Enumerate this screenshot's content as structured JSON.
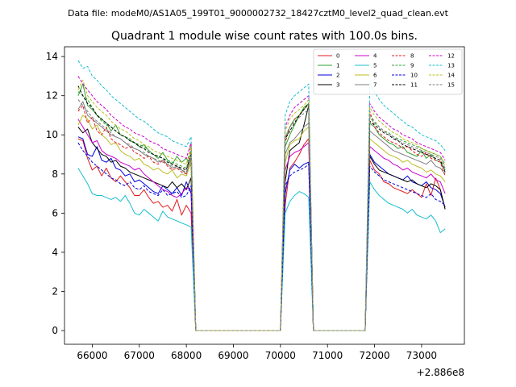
{
  "suptitle": "Data file: modeM0/AS1A05_199T01_9000002732_18427cztM0_level2_quad_clean.evt",
  "chart_data": {
    "type": "line",
    "title": "Quadrant 1 module wise count rates with 100.0s bins.",
    "xlabel": "",
    "ylabel": "",
    "x_offset_label": "+2.886e8",
    "xlim": [
      65410,
      73910
    ],
    "ylim": [
      -0.7,
      14.5
    ],
    "x_ticks": [
      66000,
      67000,
      68000,
      69000,
      70000,
      71000,
      72000,
      73000
    ],
    "x_tick_labels": [
      "66000",
      "67000",
      "68000",
      "69000",
      "70000",
      "71000",
      "72000",
      "73000"
    ],
    "y_ticks": [
      0,
      2,
      4,
      6,
      8,
      10,
      12,
      14
    ],
    "y_tick_labels": [
      "0",
      "2",
      "4",
      "6",
      "8",
      "10",
      "12",
      "14"
    ],
    "bin_size_s": 100,
    "segments": [
      {
        "start": 65700,
        "step": 100,
        "count": 25
      },
      {
        "start": 68200,
        "step": 100,
        "count": 19,
        "constant": 0
      },
      {
        "start": 70100,
        "step": 100,
        "count": 6
      },
      {
        "start": 70700,
        "step": 100,
        "count": 12,
        "constant": 0
      },
      {
        "start": 71900,
        "step": 100,
        "count": 17
      }
    ],
    "series": [
      {
        "name": "0",
        "color": "#e41a1c",
        "dash": "solid",
        "seg_a": [
          9.8,
          9.7,
          8.8,
          8.2,
          8.4,
          7.9,
          8.3,
          7.8,
          7.6,
          7.9,
          7.6,
          7.3,
          6.9,
          6.9,
          7.2,
          6.8,
          6.5,
          6.6,
          6.3,
          6.4,
          6.1,
          6.7,
          5.9,
          6.4,
          6.0
        ],
        "seg_b": [
          6.4,
          8.3,
          8.6,
          9.0,
          9.5,
          9.8
        ],
        "seg_c": [
          8.7,
          8.2,
          8.0,
          7.6,
          7.5,
          7.3,
          7.2,
          7.1,
          7.0,
          7.2,
          7.0,
          6.8,
          7.5,
          6.9,
          7.8,
          7.2,
          6.2
        ]
      },
      {
        "name": "1",
        "color": "#2ca02c",
        "dash": "solid",
        "seg_a": [
          12.0,
          12.6,
          11.5,
          11.3,
          11.0,
          10.8,
          10.6,
          10.2,
          10.5,
          10.0,
          9.9,
          9.7,
          9.6,
          9.4,
          9.5,
          9.2,
          9.0,
          8.8,
          9.1,
          8.7,
          8.5,
          8.9,
          8.6,
          8.8,
          8.4
        ],
        "seg_b": [
          9.4,
          10.0,
          10.5,
          11.0,
          11.4,
          11.6
        ],
        "seg_c": [
          10.6,
          10.4,
          10.0,
          9.8,
          9.6,
          9.5,
          9.3,
          9.4,
          9.1,
          9.0,
          8.9,
          9.2,
          8.8,
          9.0,
          8.7,
          8.6,
          8.2
        ]
      },
      {
        "name": "2",
        "color": "#0000dd",
        "dash": "solid",
        "seg_a": [
          9.9,
          9.8,
          9.0,
          8.9,
          9.4,
          8.7,
          8.6,
          8.8,
          8.3,
          8.2,
          7.9,
          8.0,
          7.6,
          7.7,
          7.5,
          7.3,
          7.1,
          7.0,
          7.4,
          7.2,
          7.0,
          7.3,
          6.9,
          7.6,
          7.0
        ],
        "seg_b": [
          7.0,
          8.2,
          8.5,
          8.3,
          8.5,
          8.6
        ],
        "seg_c": [
          9.0,
          8.6,
          8.4,
          8.2,
          8.0,
          7.9,
          7.8,
          7.7,
          7.9,
          7.6,
          7.5,
          7.4,
          7.6,
          7.3,
          7.2,
          7.0,
          6.3
        ]
      },
      {
        "name": "3",
        "color": "#000000",
        "dash": "solid",
        "seg_a": [
          10.4,
          10.1,
          10.3,
          9.6,
          9.3,
          9.0,
          8.9,
          8.6,
          8.7,
          8.4,
          8.3,
          8.1,
          8.0,
          7.9,
          7.8,
          7.7,
          7.6,
          7.5,
          7.4,
          7.3,
          7.6,
          7.3,
          7.5,
          7.2,
          7.8
        ],
        "seg_b": [
          7.6,
          9.2,
          9.4,
          9.6,
          10.5,
          11.5
        ],
        "seg_c": [
          8.9,
          8.5,
          8.2,
          8.1,
          8.0,
          7.9,
          7.8,
          7.7,
          7.6,
          7.7,
          7.5,
          7.4,
          7.3,
          7.5,
          7.4,
          7.2,
          6.2
        ]
      },
      {
        "name": "4",
        "color": "#cc00cc",
        "dash": "solid",
        "seg_a": [
          10.8,
          10.4,
          10.0,
          9.6,
          9.7,
          9.2,
          9.0,
          8.9,
          8.8,
          8.6,
          8.5,
          8.4,
          8.2,
          8.3,
          8.0,
          7.8,
          7.6,
          7.4,
          7.2,
          7.1,
          6.9,
          6.8,
          7.0,
          7.3,
          7.2
        ],
        "seg_b": [
          8.2,
          8.9,
          9.1,
          9.2,
          9.4,
          9.6
        ],
        "seg_c": [
          9.4,
          9.2,
          9.0,
          8.8,
          8.7,
          8.5,
          8.4,
          8.2,
          8.3,
          8.1,
          8.0,
          7.9,
          7.8,
          8.0,
          7.7,
          7.6,
          7.0
        ]
      },
      {
        "name": "5",
        "color": "#17becf",
        "dash": "solid",
        "seg_a": [
          8.3,
          7.9,
          7.5,
          7.0,
          6.9,
          6.9,
          6.8,
          6.7,
          6.8,
          6.6,
          6.9,
          6.5,
          6.0,
          5.9,
          6.2,
          6.0,
          5.8,
          5.6,
          6.1,
          5.8,
          5.7,
          5.6,
          5.5,
          5.4,
          5.3
        ],
        "seg_b": [
          6.0,
          6.6,
          6.9,
          7.1,
          7.0,
          6.8
        ],
        "seg_c": [
          7.6,
          7.2,
          6.9,
          6.7,
          6.5,
          6.4,
          6.3,
          6.2,
          6.0,
          6.2,
          5.9,
          5.8,
          5.7,
          5.9,
          5.6,
          5.0,
          5.2
        ]
      },
      {
        "name": "6",
        "color": "#bcbd22",
        "dash": "solid",
        "seg_a": [
          10.5,
          11.0,
          10.8,
          10.3,
          10.5,
          10.0,
          9.8,
          9.5,
          9.6,
          9.2,
          9.0,
          8.9,
          8.7,
          8.8,
          8.5,
          8.4,
          8.2,
          8.3,
          8.1,
          8.0,
          8.2,
          7.8,
          8.0,
          7.9,
          8.6
        ],
        "seg_b": [
          8.6,
          9.5,
          9.7,
          9.8,
          10.2,
          10.4
        ],
        "seg_c": [
          9.8,
          9.6,
          9.4,
          9.2,
          9.0,
          8.9,
          8.8,
          8.6,
          8.7,
          8.5,
          8.4,
          8.3,
          8.1,
          8.2,
          8.0,
          7.9,
          7.6
        ]
      },
      {
        "name": "7",
        "color": "#7f7f7f",
        "dash": "solid",
        "seg_a": [
          11.3,
          11.7,
          11.0,
          10.8,
          10.6,
          10.4,
          10.2,
          10.0,
          9.9,
          9.8,
          9.6,
          9.4,
          9.3,
          9.2,
          9.0,
          8.9,
          8.8,
          8.6,
          8.7,
          8.5,
          8.3,
          8.4,
          8.2,
          8.0,
          8.8
        ],
        "seg_b": [
          9.0,
          9.6,
          9.8,
          10.1,
          10.4,
          10.6
        ],
        "seg_c": [
          10.2,
          10.0,
          9.8,
          9.6,
          9.4,
          9.2,
          9.1,
          9.0,
          8.9,
          8.8,
          8.7,
          8.6,
          8.5,
          8.7,
          8.4,
          8.3,
          8.0
        ]
      },
      {
        "name": "8",
        "color": "#e41a1c",
        "dash": "dashed",
        "seg_a": [
          11.2,
          11.5,
          10.6,
          10.9,
          10.2,
          10.0,
          10.4,
          9.8,
          9.6,
          9.5,
          9.3,
          9.4,
          9.1,
          9.0,
          8.8,
          8.9,
          8.6,
          8.5,
          8.7,
          8.4,
          8.2,
          8.3,
          8.1,
          8.0,
          9.6
        ],
        "seg_b": [
          9.6,
          10.4,
          10.8,
          11.0,
          11.3,
          11.6
        ],
        "seg_c": [
          11.2,
          10.4,
          10.1,
          9.9,
          9.7,
          9.6,
          9.5,
          9.3,
          9.4,
          9.2,
          9.0,
          8.9,
          9.1,
          8.8,
          8.7,
          8.6,
          7.9
        ]
      },
      {
        "name": "9",
        "color": "#2ca02c",
        "dash": "dashed",
        "seg_a": [
          12.2,
          12.0,
          11.8,
          11.4,
          11.0,
          10.7,
          10.5,
          10.4,
          10.2,
          10.0,
          9.9,
          9.8,
          9.6,
          9.5,
          9.4,
          9.2,
          9.0,
          8.9,
          8.8,
          8.7,
          8.6,
          8.5,
          8.4,
          8.3,
          9.2
        ],
        "seg_b": [
          9.8,
          10.4,
          10.8,
          11.0,
          11.3,
          11.6
        ],
        "seg_c": [
          10.9,
          10.6,
          10.4,
          10.2,
          10.1,
          9.9,
          9.8,
          9.7,
          9.6,
          9.5,
          9.4,
          9.3,
          9.2,
          9.1,
          9.0,
          8.9,
          8.5
        ]
      },
      {
        "name": "10",
        "color": "#0000dd",
        "dash": "dashed",
        "seg_a": [
          9.6,
          9.2,
          8.9,
          8.6,
          8.4,
          8.2,
          8.0,
          7.8,
          7.7,
          7.5,
          7.4,
          7.6,
          7.3,
          7.2,
          7.4,
          7.1,
          7.0,
          6.9,
          7.2,
          6.9,
          7.0,
          7.1,
          6.8,
          6.9,
          7.4
        ],
        "seg_b": [
          7.4,
          7.9,
          8.1,
          8.2,
          8.3,
          8.5
        ],
        "seg_c": [
          8.4,
          8.1,
          7.9,
          7.7,
          7.6,
          7.5,
          7.4,
          7.3,
          7.2,
          7.1,
          7.0,
          6.9,
          6.8,
          7.0,
          6.7,
          6.6,
          6.4
        ]
      },
      {
        "name": "11",
        "color": "#000000",
        "dash": "dashed",
        "seg_a": [
          12.5,
          12.0,
          11.6,
          11.4,
          11.0,
          10.8,
          10.6,
          10.4,
          10.2,
          10.0,
          9.9,
          9.7,
          9.6,
          9.4,
          9.3,
          9.1,
          9.0,
          8.9,
          8.8,
          8.6,
          8.5,
          8.4,
          8.3,
          8.2,
          9.0
        ],
        "seg_b": [
          9.8,
          10.2,
          10.6,
          11.0,
          11.3,
          11.6
        ],
        "seg_c": [
          10.7,
          10.5,
          10.3,
          10.1,
          10.0,
          9.8,
          9.7,
          9.5,
          9.4,
          9.3,
          9.2,
          9.1,
          9.0,
          8.9,
          8.8,
          8.7,
          8.1
        ]
      },
      {
        "name": "12",
        "color": "#cc00cc",
        "dash": "dashed",
        "seg_a": [
          13.0,
          12.6,
          12.3,
          12.0,
          11.7,
          11.5,
          11.3,
          11.0,
          10.8,
          10.6,
          10.4,
          10.3,
          10.1,
          10.0,
          9.9,
          9.7,
          9.6,
          9.5,
          9.3,
          9.2,
          9.1,
          9.0,
          8.9,
          8.8,
          9.6
        ],
        "seg_b": [
          10.4,
          11.0,
          11.4,
          11.6,
          11.8,
          12.0
        ],
        "seg_c": [
          11.6,
          11.2,
          10.9,
          10.7,
          10.5,
          10.3,
          10.2,
          10.0,
          9.9,
          9.8,
          9.6,
          9.5,
          9.4,
          9.3,
          9.2,
          9.1,
          8.7
        ]
      },
      {
        "name": "13",
        "color": "#17becf",
        "dash": "dashed",
        "seg_a": [
          13.8,
          13.4,
          13.5,
          13.0,
          12.8,
          12.5,
          12.3,
          12.0,
          11.8,
          11.6,
          11.4,
          11.2,
          11.0,
          10.8,
          10.7,
          10.5,
          10.3,
          10.1,
          10.0,
          9.9,
          9.7,
          9.6,
          9.5,
          9.4,
          9.9
        ],
        "seg_b": [
          11.0,
          11.7,
          12.0,
          12.2,
          12.4,
          12.6
        ],
        "seg_c": [
          12.6,
          12.2,
          11.8,
          11.5,
          11.3,
          11.1,
          10.9,
          10.7,
          10.5,
          10.4,
          10.2,
          10.0,
          9.9,
          9.8,
          9.7,
          9.5,
          9.2
        ]
      },
      {
        "name": "14",
        "color": "#bcbd22",
        "dash": "dashed",
        "seg_a": [
          12.3,
          12.8,
          12.0,
          11.7,
          11.4,
          11.2,
          11.0,
          10.7,
          10.5,
          10.3,
          10.2,
          10.0,
          9.8,
          9.7,
          9.5,
          9.4,
          9.2,
          9.1,
          9.0,
          8.9,
          8.8,
          8.7,
          8.6,
          8.5,
          9.4
        ],
        "seg_b": [
          10.2,
          10.8,
          11.1,
          11.3,
          11.5,
          11.8
        ],
        "seg_c": [
          11.4,
          11.0,
          10.7,
          10.5,
          10.3,
          10.1,
          10.0,
          9.8,
          9.7,
          9.6,
          9.5,
          9.3,
          9.2,
          9.1,
          9.0,
          8.9,
          8.4
        ]
      },
      {
        "name": "15",
        "color": "#7f7f7f",
        "dash": "dashed",
        "seg_a": [
          11.8,
          11.5,
          11.2,
          10.9,
          10.7,
          10.5,
          10.3,
          10.1,
          9.9,
          9.8,
          9.6,
          9.5,
          9.3,
          9.2,
          9.1,
          8.9,
          8.8,
          8.7,
          8.6,
          8.5,
          8.4,
          8.3,
          8.2,
          8.1,
          8.9
        ],
        "seg_b": [
          9.9,
          10.4,
          10.7,
          10.9,
          11.1,
          11.3
        ],
        "seg_c": [
          11.0,
          10.7,
          10.4,
          10.2,
          10.0,
          9.9,
          9.7,
          9.6,
          9.5,
          9.4,
          9.3,
          9.2,
          9.1,
          9.0,
          8.9,
          8.8,
          8.3
        ]
      }
    ],
    "legend": {
      "placement": "top-right",
      "columns": 4
    }
  }
}
